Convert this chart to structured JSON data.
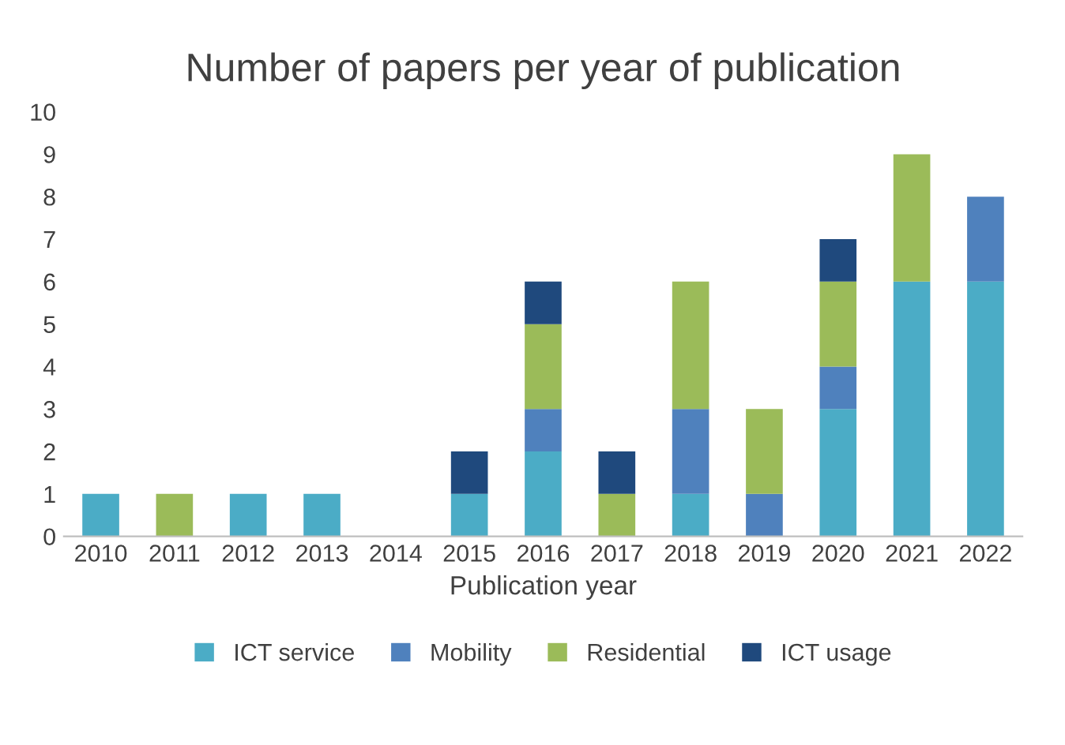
{
  "chart_data": {
    "type": "bar",
    "stacked": true,
    "title": "Number of papers per year of publication",
    "xlabel": "Publication year",
    "categories": [
      "2010",
      "2011",
      "2012",
      "2013",
      "2014",
      "2015",
      "2016",
      "2017",
      "2018",
      "2019",
      "2020",
      "2021",
      "2022"
    ],
    "series": [
      {
        "name": "ICT service",
        "color": "#4bacc6",
        "values": [
          1,
          0,
          1,
          1,
          0,
          1,
          2,
          0,
          1,
          0,
          3,
          6,
          6
        ]
      },
      {
        "name": "Mobility",
        "color": "#4f81bd",
        "values": [
          0,
          0,
          0,
          0,
          0,
          0,
          1,
          0,
          2,
          1,
          1,
          0,
          2
        ]
      },
      {
        "name": "Residential",
        "color": "#9bbb59",
        "values": [
          0,
          1,
          0,
          0,
          0,
          0,
          2,
          1,
          3,
          2,
          2,
          3,
          0
        ]
      },
      {
        "name": "ICT usage",
        "color": "#1f497d",
        "values": [
          0,
          0,
          0,
          0,
          0,
          1,
          1,
          1,
          0,
          0,
          1,
          0,
          0
        ]
      }
    ],
    "ylim": [
      0,
      10
    ],
    "yticks": [
      0,
      1,
      2,
      3,
      4,
      5,
      6,
      7,
      8,
      9,
      10
    ],
    "grid": false,
    "legend": "bottom"
  }
}
